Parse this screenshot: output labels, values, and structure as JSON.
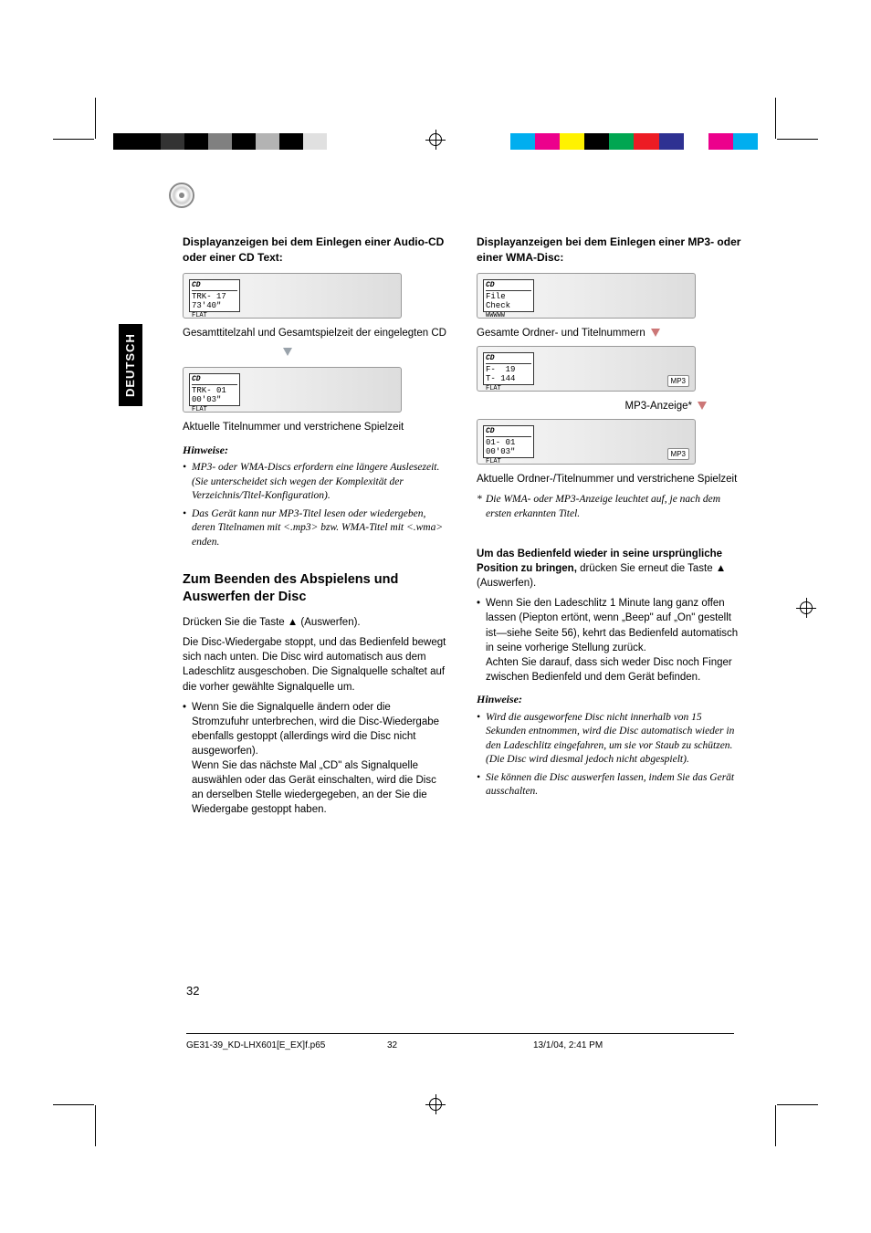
{
  "colorbars": {
    "left": [
      "#000000",
      "#000000",
      "#333333",
      "#000000",
      "#808080",
      "#000000",
      "#b3b3b3",
      "#000000",
      "#e0e0e0",
      "#ffffff"
    ],
    "right": [
      "#00aeef",
      "#ec008c",
      "#fff200",
      "#000000",
      "#00a651",
      "#ed1c24",
      "#2e3192",
      "#ffffff",
      "#ec008c",
      "#00aeef"
    ]
  },
  "lang_tab": "DEUTSCH",
  "left_col": {
    "head1": "Displayanzeigen bei dem Einlegen einer Audio-CD oder einer CD Text:",
    "lcd1": {
      "top": "CD",
      "l1": "TRK- 17",
      "l2": "73'40\"",
      "l3": "FLAT"
    },
    "cap1": "Gesamttitelzahl und Gesamtspielzeit der eingelegten CD",
    "lcd2": {
      "top": "CD",
      "l1": "TRK- 01",
      "l2": "00'03\"",
      "l3": "FLAT"
    },
    "cap2": "Aktuelle Titelnummer und verstrichene Spielzeit",
    "hinweise": "Hinweise:",
    "notes": [
      "MP3- oder WMA-Discs erfordern eine längere Auslesezeit. (Sie unterscheidet sich wegen der Komplexität der Verzeichnis/Titel-Konfiguration).",
      "Das Gerät kann nur MP3-Titel lesen oder wiedergeben, deren Titelnamen mit <.mp3> bzw. WMA-Titel mit <.wma> enden."
    ],
    "sec_head": "Zum Beenden des Abspielens und Auswerfen der Disc",
    "p1": "Drücken Sie die Taste ▲ (Auswerfen).",
    "p2": "Die Disc-Wiedergabe stoppt, und das Bedienfeld bewegt sich nach unten. Die Disc wird automatisch aus dem Ladeschlitz ausgeschoben. Die Signalquelle schaltet auf die vorher gewählte Signalquelle um.",
    "bullet": "Wenn Sie die Signalquelle ändern oder die Stromzufuhr unterbrechen, wird die Disc-Wiedergabe ebenfalls gestoppt (allerdings wird die Disc nicht ausgeworfen).\nWenn Sie das nächste Mal „CD\" als Signalquelle auswählen oder das Gerät einschalten, wird die Disc an derselben Stelle wiedergegeben, an der Sie die Wiedergabe gestoppt haben."
  },
  "right_col": {
    "head1": "Displayanzeigen bei dem Einlegen einer MP3- oder einer WMA-Disc:",
    "lcd1": {
      "top": "CD",
      "l1": "File",
      "l2": "Check",
      "l3": "WWWWW"
    },
    "cap1": "Gesamte Ordner- und Titelnummern",
    "lcd2": {
      "top": "CD",
      "l1": "F-  19",
      "l2": "T- 144",
      "l3": "FLAT",
      "mp3": "MP3"
    },
    "cap2": "MP3-Anzeige*",
    "lcd3": {
      "top": "CD",
      "l1": "01- 01",
      "l2": "00'03\"",
      "l3": "FLAT",
      "mp3": "MP3"
    },
    "cap3": "Aktuelle Ordner-/Titelnummer und verstrichene Spielzeit",
    "footnote": "Die WMA- oder MP3-Anzeige leuchtet auf, je nach dem ersten erkannten Titel.",
    "p_bold": "Um das Bedienfeld wieder in seine ursprüngliche Position zu bringen,",
    "p_after": " drücken Sie erneut die Taste ▲ (Auswerfen).",
    "bullet": "Wenn Sie den Ladeschlitz 1 Minute lang ganz offen lassen (Piepton ertönt, wenn „Beep\" auf „On\" gestellt ist—siehe Seite 56), kehrt das Bedienfeld automatisch in seine vorherige Stellung zurück.\nAchten Sie darauf, dass sich weder Disc noch Finger zwischen Bedienfeld und dem Gerät befinden.",
    "hinweise": "Hinweise:",
    "notes": [
      "Wird die ausgeworfene Disc nicht innerhalb von 15 Sekunden entnommen, wird die Disc automatisch wieder in den Ladeschlitz eingefahren, um sie vor Staub zu schützen.\n(Die Disc wird diesmal jedoch nicht abgespielt).",
      "Sie können die Disc auswerfen lassen, indem Sie das Gerät ausschalten."
    ]
  },
  "page_num": "32",
  "footer": {
    "file": "GE31-39_KD-LHX601[E_EX]f.p65",
    "page": "32",
    "date": "13/1/04, 2:41 PM"
  }
}
